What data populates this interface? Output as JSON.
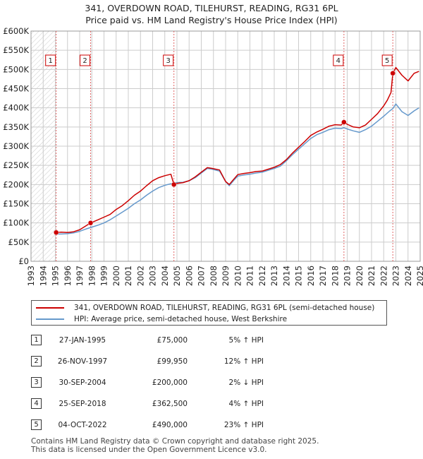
{
  "title_line1": "341, OVERDOWN ROAD, TILEHURST, READING, RG31 6PL",
  "title_line2": "Price paid vs. HM Land Registry's House Price Index (HPI)",
  "colors": {
    "property": "#cc0000",
    "hpi": "#6699cc",
    "marker": "#cc0000",
    "vline": "#e06666",
    "grid": "#cccccc"
  },
  "chart_data": {
    "type": "line",
    "title": "Price paid vs. HM Land Registry's House Price Index (HPI)",
    "xlabel": "",
    "ylabel": "",
    "xlim": [
      1993,
      2025
    ],
    "ylim": [
      0,
      600000
    ],
    "y_ticks": [
      0,
      50000,
      100000,
      150000,
      200000,
      250000,
      300000,
      350000,
      400000,
      450000,
      500000,
      550000,
      600000
    ],
    "y_tick_labels": [
      "£0",
      "£50K",
      "£100K",
      "£150K",
      "£200K",
      "£250K",
      "£300K",
      "£350K",
      "£400K",
      "£450K",
      "£500K",
      "£550K",
      "£600K"
    ],
    "x_ticks": [
      1993,
      1994,
      1995,
      1996,
      1997,
      1998,
      1999,
      2000,
      2001,
      2002,
      2003,
      2004,
      2005,
      2006,
      2007,
      2008,
      2009,
      2010,
      2011,
      2012,
      2013,
      2014,
      2015,
      2016,
      2017,
      2018,
      2019,
      2020,
      2021,
      2022,
      2023,
      2024,
      2025
    ],
    "x_tick_labels": [
      "1993",
      "1994",
      "1995",
      "1996",
      "1997",
      "1998",
      "1999",
      "2000",
      "2001",
      "2002",
      "2003",
      "2004",
      "2005",
      "2006",
      "2007",
      "2008",
      "2009",
      "2010",
      "2011",
      "2012",
      "2013",
      "2014",
      "2015",
      "2016",
      "2017",
      "2018",
      "2019",
      "2020",
      "2021",
      "2022",
      "2023",
      "2024",
      "2025"
    ],
    "hatched_region": [
      1993,
      1995.07
    ],
    "series": [
      {
        "name": "341, OVERDOWN ROAD, TILEHURST, READING, RG31 6PL (semi-detached house)",
        "x": [
          1995.07,
          1995.5,
          1996,
          1996.5,
          1997,
          1997.5,
          1997.9,
          1998.5,
          1999,
          1999.5,
          2000,
          2000.5,
          2001,
          2001.5,
          2002,
          2002.5,
          2003,
          2003.5,
          2004,
          2004.5,
          2004.75,
          2005,
          2005.5,
          2006,
          2006.5,
          2007,
          2007.5,
          2007.9,
          2008.5,
          2009,
          2009.3,
          2009.7,
          2010,
          2010.5,
          2011,
          2011.5,
          2012,
          2012.5,
          2013,
          2013.5,
          2014,
          2014.5,
          2015,
          2015.5,
          2016,
          2016.5,
          2017,
          2017.5,
          2018,
          2018.5,
          2018.73,
          2019,
          2019.5,
          2020,
          2020.5,
          2021,
          2021.5,
          2022,
          2022.3,
          2022.6,
          2022.75,
          2023,
          2023.5,
          2024,
          2024.5,
          2024.9
        ],
        "y": [
          75000,
          76000,
          75000,
          77000,
          82000,
          92000,
          99950,
          108000,
          115000,
          122000,
          135000,
          145000,
          158000,
          172000,
          183000,
          197000,
          210000,
          218000,
          223000,
          227000,
          200000,
          203000,
          205000,
          210000,
          220000,
          232000,
          244000,
          242000,
          238000,
          208000,
          200000,
          215000,
          226000,
          229000,
          231000,
          234000,
          235000,
          240000,
          245000,
          252000,
          265000,
          282000,
          297000,
          312000,
          328000,
          337000,
          344000,
          352000,
          356000,
          355000,
          362500,
          357000,
          350000,
          348000,
          355000,
          370000,
          385000,
          405000,
          420000,
          440000,
          490000,
          505000,
          485000,
          470000,
          490000,
          495000
        ]
      },
      {
        "name": "HPI: Average price, semi-detached house, West Berkshire",
        "x": [
          1995.07,
          1995.5,
          1996,
          1996.5,
          1997,
          1997.5,
          1998,
          1998.5,
          1999,
          1999.5,
          2000,
          2000.5,
          2001,
          2001.5,
          2002,
          2002.5,
          2003,
          2003.5,
          2004,
          2004.5,
          2004.75,
          2005,
          2005.5,
          2006,
          2006.5,
          2007,
          2007.5,
          2007.9,
          2008.5,
          2009,
          2009.3,
          2009.7,
          2010,
          2010.5,
          2011,
          2011.5,
          2012,
          2012.5,
          2013,
          2013.5,
          2014,
          2014.5,
          2015,
          2015.5,
          2016,
          2016.5,
          2017,
          2017.5,
          2018,
          2018.5,
          2018.73,
          2019,
          2019.5,
          2020,
          2020.5,
          2021,
          2021.5,
          2022,
          2022.5,
          2022.75,
          2023,
          2023.5,
          2024,
          2024.5,
          2024.9
        ],
        "y": [
          71000,
          71000,
          72000,
          74000,
          78000,
          84000,
          89000,
          94000,
          100000,
          108000,
          118000,
          128000,
          138000,
          150000,
          160000,
          172000,
          183000,
          192000,
          198000,
          202000,
          204000,
          205000,
          206000,
          210000,
          218000,
          230000,
          242000,
          240000,
          235000,
          208000,
          197000,
          212000,
          222000,
          225000,
          227000,
          230000,
          232000,
          237000,
          242000,
          248000,
          262000,
          278000,
          292000,
          306000,
          320000,
          330000,
          336000,
          343000,
          347000,
          346000,
          348000,
          345000,
          340000,
          336000,
          343000,
          352000,
          365000,
          378000,
          392000,
          398000,
          410000,
          390000,
          380000,
          392000,
          400000
        ]
      }
    ],
    "transactions": [
      {
        "label": "1",
        "x": 1995.07,
        "y": 75000
      },
      {
        "label": "2",
        "x": 1997.9,
        "y": 99950
      },
      {
        "label": "3",
        "x": 2004.75,
        "y": 200000
      },
      {
        "label": "4",
        "x": 2018.73,
        "y": 362500
      },
      {
        "label": "5",
        "x": 2022.75,
        "y": 490000
      }
    ]
  },
  "legend": {
    "property_label": "341, OVERDOWN ROAD, TILEHURST, READING, RG31 6PL (semi-detached house)",
    "hpi_label": "HPI: Average price, semi-detached house, West Berkshire"
  },
  "transactions_table": [
    {
      "num": "1",
      "date": "27-JAN-1995",
      "price": "£75,000",
      "hpi": "5% ↑ HPI"
    },
    {
      "num": "2",
      "date": "26-NOV-1997",
      "price": "£99,950",
      "hpi": "12% ↑ HPI"
    },
    {
      "num": "3",
      "date": "30-SEP-2004",
      "price": "£200,000",
      "hpi": "2% ↓ HPI"
    },
    {
      "num": "4",
      "date": "25-SEP-2018",
      "price": "£362,500",
      "hpi": "4% ↑ HPI"
    },
    {
      "num": "5",
      "date": "04-OCT-2022",
      "price": "£490,000",
      "hpi": "23% ↑ HPI"
    }
  ],
  "footer": {
    "line1": "Contains HM Land Registry data © Crown copyright and database right 2025.",
    "line2": "This data is licensed under the Open Government Licence v3.0."
  }
}
